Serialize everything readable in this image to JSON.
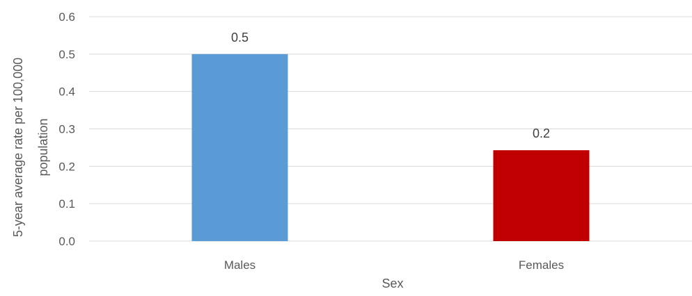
{
  "chart_data": {
    "type": "bar",
    "categories": [
      "Males",
      "Females"
    ],
    "values": [
      0.5,
      0.243
    ],
    "data_labels": [
      "0.5",
      "0.2"
    ],
    "colors": [
      "#5b9bd5",
      "#c00000"
    ],
    "xlabel": "Sex",
    "ylabel_lines": [
      "5-year average rate per 100,000",
      "population"
    ],
    "ylim": [
      0,
      0.6
    ],
    "yticks": [
      "0.0",
      "0.1",
      "0.2",
      "0.3",
      "0.4",
      "0.5",
      "0.6"
    ],
    "grid": true,
    "legend": "none"
  }
}
